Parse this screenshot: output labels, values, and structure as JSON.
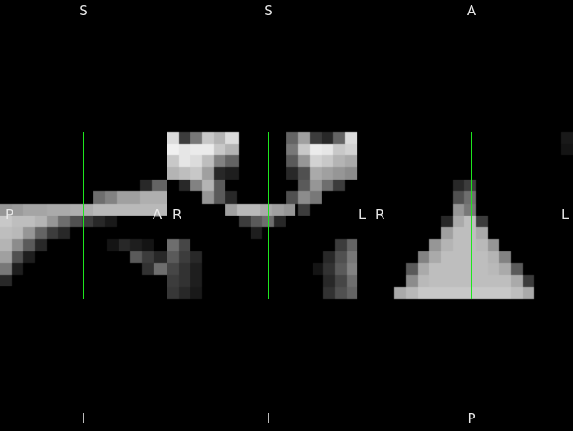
{
  "viewer": {
    "crosshair_color": "#1ee61e",
    "background": "#000000",
    "views": [
      {
        "id": "sagittal",
        "labels": {
          "top": "S",
          "bottom": "I",
          "left": "P",
          "right": "A"
        }
      },
      {
        "id": "coronal",
        "labels": {
          "top": "S",
          "bottom": "I",
          "left": "R",
          "right": "L"
        }
      },
      {
        "id": "axial",
        "labels": {
          "top": "A",
          "bottom": "P",
          "left": "R",
          "right": "L"
        }
      }
    ]
  }
}
